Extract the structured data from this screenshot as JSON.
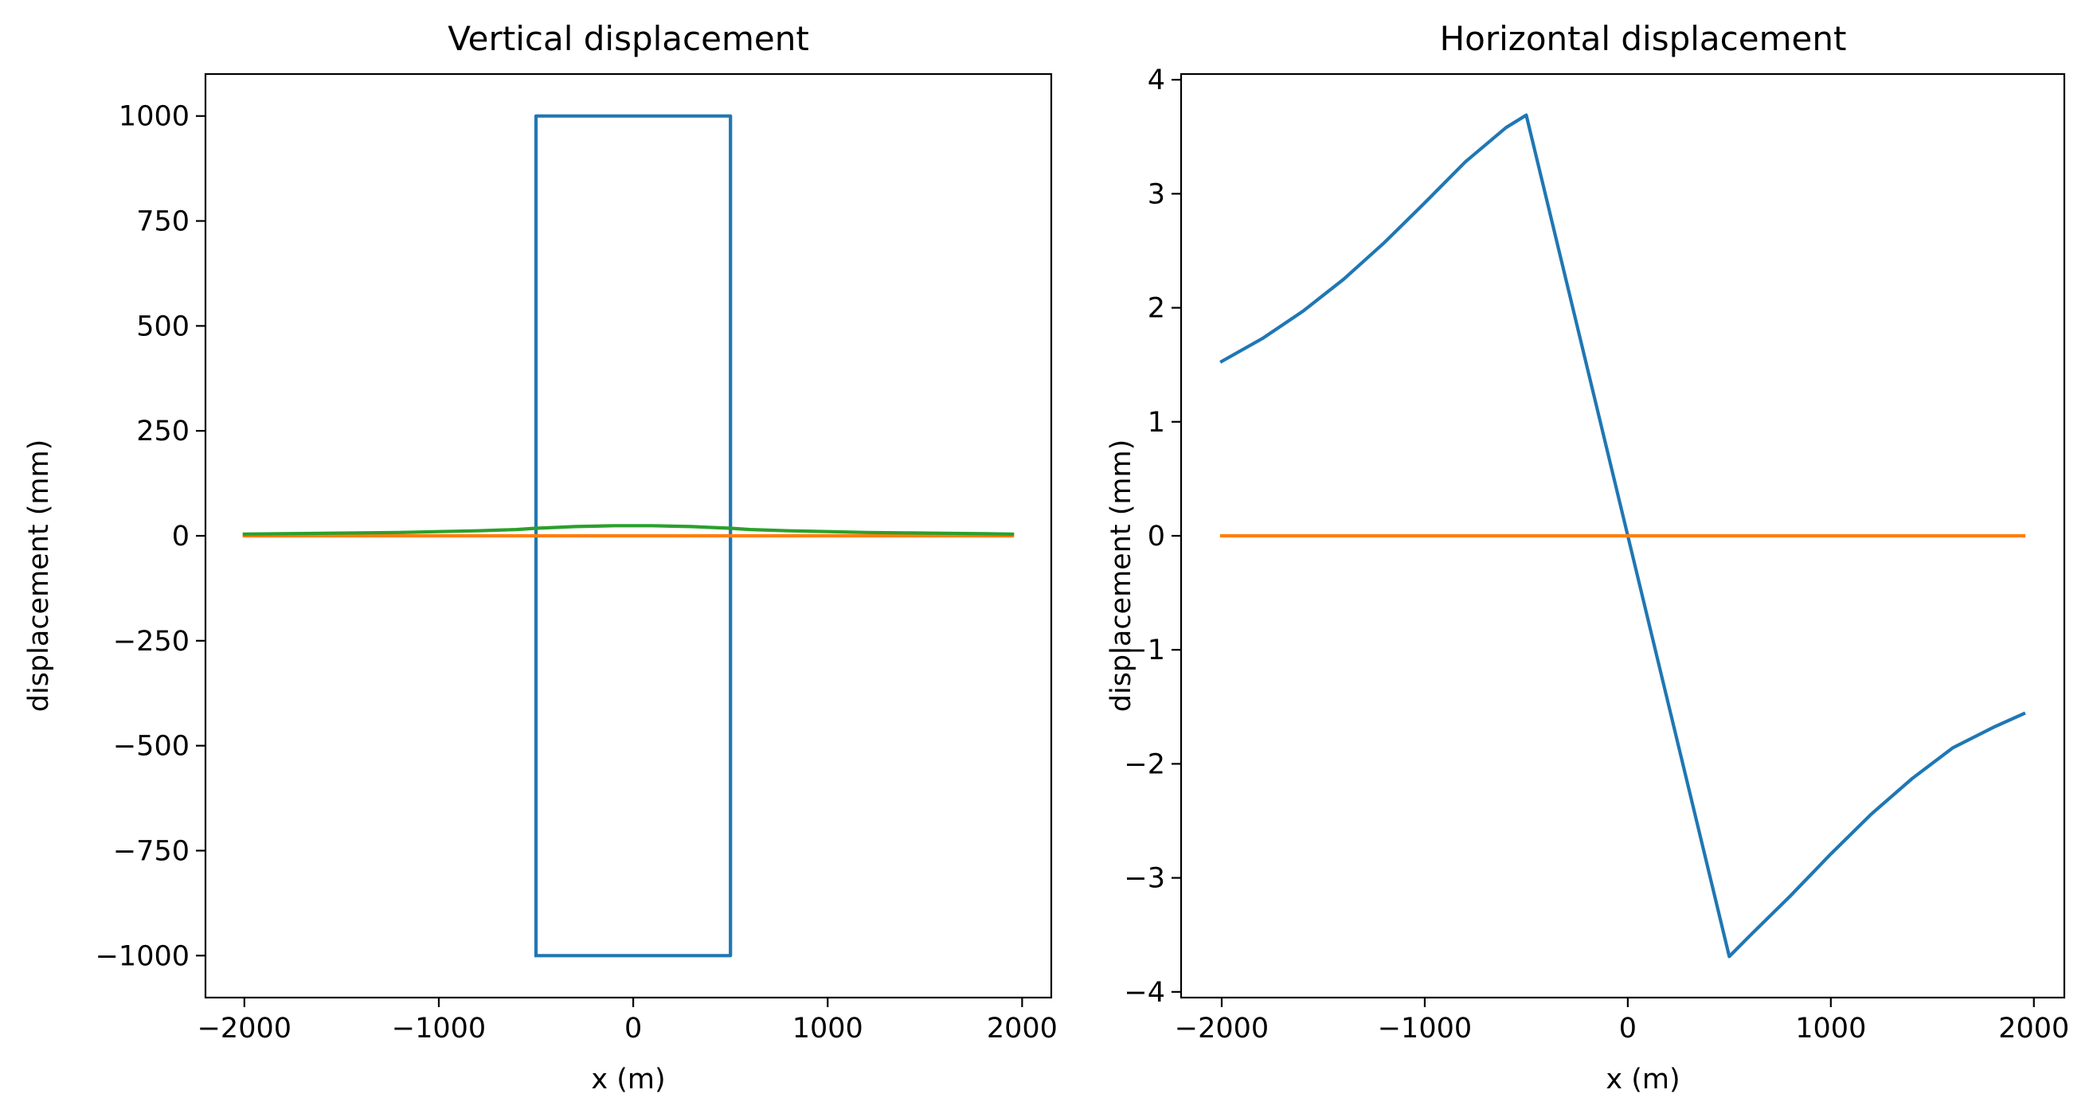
{
  "chart_data": [
    {
      "type": "line",
      "title": "Vertical displacement",
      "xlabel": "x (m)",
      "ylabel": "displacement (mm)",
      "xlim": [
        -2200,
        2150
      ],
      "ylim": [
        -1100,
        1100
      ],
      "xticks": [
        -2000,
        -1000,
        0,
        1000,
        2000
      ],
      "xtick_labels": [
        "−2000",
        "−1000",
        "0",
        "1000",
        "2000"
      ],
      "yticks": [
        -1000,
        -750,
        -500,
        -250,
        0,
        250,
        500,
        750,
        1000
      ],
      "ytick_labels": [
        "−1000",
        "−750",
        "−500",
        "−250",
        "0",
        "250",
        "500",
        "750",
        "1000"
      ],
      "grid": false,
      "series": [
        {
          "color": "#1f77b4",
          "points": [
            [
              -500,
              -1000
            ],
            [
              -500,
              1000
            ],
            [
              500,
              1000
            ],
            [
              500,
              -1000
            ],
            [
              -500,
              -1000
            ]
          ]
        },
        {
          "color": "#ff7f0e",
          "points": [
            [
              -2000,
              0
            ],
            [
              -1000,
              0
            ],
            [
              0,
              0
            ],
            [
              1000,
              0
            ],
            [
              1950,
              0
            ]
          ]
        },
        {
          "color": "#2ca02c",
          "points": [
            [
              -2000,
              4
            ],
            [
              -1800,
              5
            ],
            [
              -1600,
              6
            ],
            [
              -1400,
              7
            ],
            [
              -1200,
              8
            ],
            [
              -1000,
              10
            ],
            [
              -800,
              12
            ],
            [
              -600,
              15
            ],
            [
              -500,
              18
            ],
            [
              -400,
              20
            ],
            [
              -300,
              22
            ],
            [
              -200,
              23
            ],
            [
              -100,
              24
            ],
            [
              0,
              24
            ],
            [
              100,
              24
            ],
            [
              200,
              23
            ],
            [
              300,
              22
            ],
            [
              400,
              20
            ],
            [
              500,
              18
            ],
            [
              600,
              15
            ],
            [
              800,
              12
            ],
            [
              1000,
              10
            ],
            [
              1200,
              8
            ],
            [
              1400,
              7
            ],
            [
              1600,
              6
            ],
            [
              1800,
              5
            ],
            [
              1950,
              4
            ]
          ]
        }
      ]
    },
    {
      "type": "line",
      "title": "Horizontal displacement",
      "xlabel": "x (m)",
      "ylabel": "displacement (mm)",
      "xlim": [
        -2200,
        2150
      ],
      "ylim": [
        -4.05,
        4.05
      ],
      "xticks": [
        -2000,
        -1000,
        0,
        1000,
        2000
      ],
      "xtick_labels": [
        "−2000",
        "−1000",
        "0",
        "1000",
        "2000"
      ],
      "yticks": [
        -4,
        -3,
        -2,
        -1,
        0,
        1,
        2,
        3,
        4
      ],
      "ytick_labels": [
        "−4",
        "−3",
        "−2",
        "−1",
        "0",
        "1",
        "2",
        "3",
        "4"
      ],
      "grid": false,
      "series": [
        {
          "color": "#1f77b4",
          "points": [
            [
              -2000,
              1.53
            ],
            [
              -1800,
              1.73
            ],
            [
              -1600,
              1.97
            ],
            [
              -1400,
              2.25
            ],
            [
              -1200,
              2.57
            ],
            [
              -1000,
              2.92
            ],
            [
              -800,
              3.28
            ],
            [
              -600,
              3.58
            ],
            [
              -500,
              3.69
            ],
            [
              0,
              0
            ],
            [
              500,
              -3.69
            ],
            [
              600,
              -3.51
            ],
            [
              800,
              -3.16
            ],
            [
              1000,
              -2.79
            ],
            [
              1200,
              -2.44
            ],
            [
              1400,
              -2.13
            ],
            [
              1600,
              -1.86
            ],
            [
              1800,
              -1.68
            ],
            [
              1950,
              -1.56
            ]
          ]
        },
        {
          "color": "#ff7f0e",
          "points": [
            [
              -2000,
              0
            ],
            [
              -1000,
              0
            ],
            [
              0,
              0
            ],
            [
              1000,
              0
            ],
            [
              1950,
              0
            ]
          ]
        }
      ]
    }
  ]
}
